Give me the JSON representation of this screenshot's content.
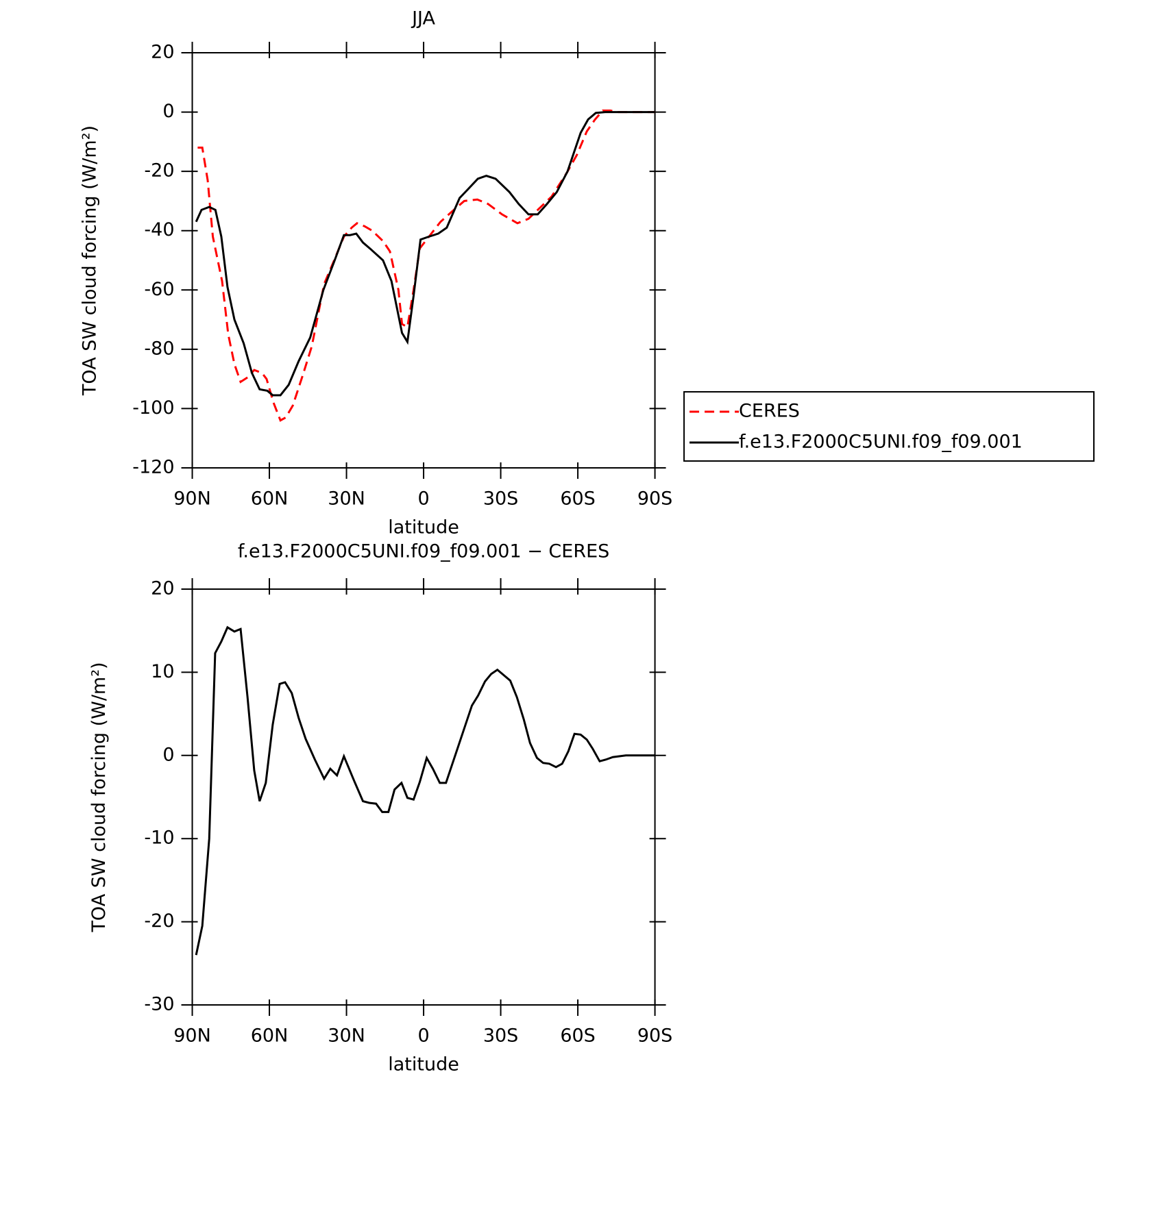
{
  "chart_data": [
    {
      "type": "line",
      "title": "JJA",
      "xlabel": "latitude",
      "ylabel": "TOA SW cloud forcing (W/m²)",
      "xlim": [
        90,
        -90
      ],
      "xticks": [
        {
          "value": 90,
          "label": "90N"
        },
        {
          "value": 60,
          "label": "60N"
        },
        {
          "value": 30,
          "label": "30N"
        },
        0,
        {
          "value": -30,
          "label": "30S"
        },
        {
          "value": -60,
          "label": "60S"
        },
        {
          "value": -90,
          "label": "90S"
        }
      ],
      "ylim": [
        -120,
        20
      ],
      "yticks": [
        20,
        0,
        -20,
        -40,
        -60,
        -80,
        -100,
        -120
      ],
      "legend": "right",
      "series": [
        {
          "name": "CERES",
          "color": "#ff0000",
          "linestyle": "dashed",
          "x": [
            87.9,
            86.1,
            84,
            82,
            78.4,
            76,
            73.6,
            71.2,
            68.5,
            65.9,
            62.9,
            61.1,
            58.4,
            55.7,
            53.6,
            50.9,
            47.1,
            43.5,
            38.7,
            34.8,
            31,
            28,
            25.9,
            23,
            20,
            15.8,
            13.1,
            9.8,
            8.4,
            6.3,
            3.9,
            1.5,
            -2.1,
            -6.6,
            -11.1,
            -15.8,
            -20.9,
            -25.1,
            -30.5,
            -36.5,
            -40.8,
            -44.4,
            -49.8,
            -55.7,
            -59.6,
            -63.5,
            -66.7,
            -69.7,
            -72.7,
            -75.7,
            -90
          ],
          "values": [
            -12,
            -12,
            -23,
            -42,
            -57,
            -75,
            -85,
            -91,
            -89.5,
            -87,
            -88,
            -90,
            -98,
            -104,
            -103,
            -99,
            -89,
            -79,
            -58,
            -50,
            -42,
            -39,
            -37.5,
            -38.5,
            -40,
            -43.5,
            -47,
            -60,
            -71.5,
            -72.5,
            -60,
            -46,
            -42,
            -37,
            -33.5,
            -30,
            -29.5,
            -31,
            -34.5,
            -37.5,
            -36,
            -33,
            -28.5,
            -20.5,
            -14.5,
            -6.5,
            -2.5,
            0.5,
            0.5,
            0,
            0
          ]
        },
        {
          "name": "f.e13.F2000C5UNI.f09_f09.001",
          "color": "#000000",
          "linestyle": "solid",
          "x": [
            88.5,
            86.4,
            83.4,
            81,
            78.7,
            76.3,
            73.6,
            70,
            66.8,
            63.8,
            60.8,
            58.7,
            55.7,
            52.5,
            48.6,
            44.1,
            39,
            34.6,
            31,
            28.6,
            26.2,
            23.6,
            20.9,
            15.8,
            12.5,
            8.4,
            6.3,
            3.9,
            1.2,
            -2.1,
            -5.7,
            -9,
            -14,
            -17.3,
            -21.1,
            -24.4,
            -28,
            -33.4,
            -37,
            -40.8,
            -44.4,
            -48,
            -51.8,
            -56,
            -61.1,
            -64,
            -67,
            -70.6,
            -90
          ],
          "values": [
            -37,
            -33,
            -32,
            -33,
            -42,
            -59,
            -70,
            -78,
            -88,
            -93.5,
            -94,
            -95.5,
            -95.5,
            -92,
            -84,
            -76,
            -60,
            -50,
            -41.5,
            -41.5,
            -41,
            -44,
            -46,
            -50,
            -57,
            -74.5,
            -77.5,
            -62,
            -43,
            -42,
            -41,
            -39,
            -29,
            -26,
            -22.5,
            -21.5,
            -22.5,
            -27,
            -31,
            -34.5,
            -34.5,
            -31,
            -27,
            -20,
            -7,
            -2.5,
            -0.3,
            0,
            0
          ]
        }
      ]
    },
    {
      "type": "line",
      "title": "f.e13.F2000C5UNI.f09_f09.001 − CERES",
      "xlabel": "latitude",
      "ylabel": "TOA SW cloud forcing (W/m²)",
      "xlim": [
        90,
        -90
      ],
      "xticks": [
        {
          "value": 90,
          "label": "90N"
        },
        {
          "value": 60,
          "label": "60N"
        },
        {
          "value": 30,
          "label": "30N"
        },
        0,
        {
          "value": -30,
          "label": "30S"
        },
        {
          "value": -60,
          "label": "60S"
        },
        {
          "value": -90,
          "label": "90S"
        }
      ],
      "ylim": [
        -30,
        20
      ],
      "yticks": [
        20,
        10,
        0,
        -10,
        -20,
        -30
      ],
      "series": [
        {
          "color": "#000000",
          "linestyle": "solid",
          "x": [
            88.5,
            86.1,
            83.4,
            81.1,
            78.7,
            76.3,
            73.6,
            71.2,
            68.5,
            65.9,
            63.8,
            61.4,
            58.7,
            56,
            53.9,
            51.3,
            48.6,
            45.9,
            42.3,
            38.7,
            36.3,
            33.7,
            31,
            27.1,
            23.6,
            21.2,
            18.5,
            16.1,
            13.7,
            11.3,
            8.6,
            6.3,
            3.9,
            1.5,
            -1.2,
            -3.6,
            -6.3,
            -8.7,
            -13.7,
            -18.8,
            -21.2,
            -23.9,
            -26.3,
            -28.7,
            -31,
            -33.7,
            -36.3,
            -39,
            -41.4,
            -44.1,
            -46.5,
            -48.9,
            -51.5,
            -53.9,
            -56.3,
            -58.7,
            -61.1,
            -63.5,
            -65.8,
            -68.5,
            -70.9,
            -73.6,
            -78.7,
            -90
          ],
          "values": [
            -24,
            -20.5,
            -10,
            12.3,
            13.7,
            15.4,
            14.9,
            15.2,
            7,
            -1.8,
            -5.5,
            -3.3,
            3.7,
            8.6,
            8.8,
            7.5,
            4.5,
            2,
            -0.5,
            -2.8,
            -1.6,
            -2.4,
            -0.1,
            -3,
            -5.5,
            -5.7,
            -5.8,
            -6.8,
            -6.8,
            -4.1,
            -3.3,
            -5.1,
            -5.3,
            -3.2,
            -0.3,
            -1.6,
            -3.3,
            -3.3,
            1.3,
            6,
            7.2,
            8.9,
            9.8,
            10.3,
            9.7,
            9,
            7,
            4.3,
            1.5,
            -0.3,
            -0.9,
            -1,
            -1.4,
            -1,
            0.5,
            2.6,
            2.5,
            1.9,
            0.8,
            -0.7,
            -0.5,
            -0.2,
            0,
            0
          ]
        }
      ]
    }
  ]
}
